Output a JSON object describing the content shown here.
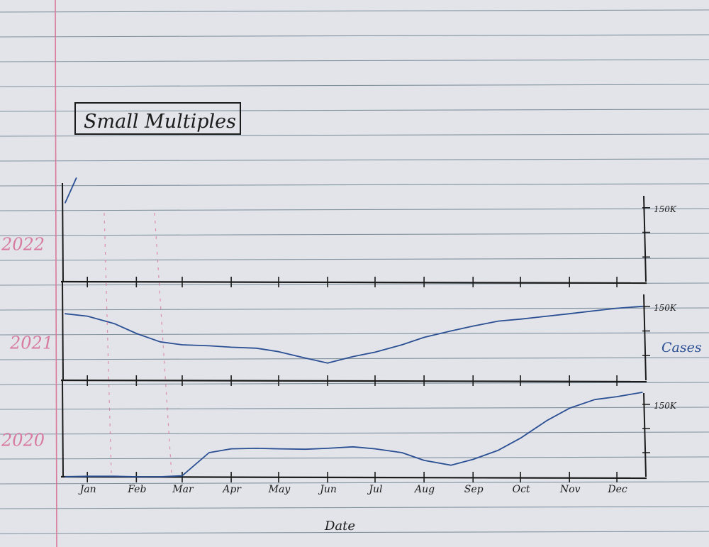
{
  "title": "Small Multiples",
  "xlabel": "Date",
  "ylabel": "Cases",
  "colors": {
    "paper": "#e3e4ea",
    "rule": "#6f8391",
    "margin": "#d97a9a",
    "ink": "#1b1b1b",
    "series": "#2a4f93",
    "year_label": "#d77ba0"
  },
  "chart_data": {
    "type": "line",
    "title": "Small Multiples",
    "xlabel": "Date",
    "ylabel": "Cases",
    "categories": [
      "Jan",
      "Feb",
      "Mar",
      "Apr",
      "May",
      "Jun",
      "Jul",
      "Aug",
      "Sep",
      "Oct",
      "Nov",
      "Dec"
    ],
    "ylim": [
      0,
      200000
    ],
    "tick_label": "150K",
    "panels": [
      {
        "name": "2022",
        "x": [
          "Jan 1",
          "Jan 8"
        ],
        "values": [
          160000,
          210000
        ]
      },
      {
        "name": "2021",
        "x": [
          "Jan 1",
          "Jan 15",
          "Feb 1",
          "Feb 15",
          "Mar 1",
          "Mar 15",
          "Apr 1",
          "Apr 15",
          "May 1",
          "May 15",
          "Jun 1",
          "Jun 15",
          "Jul 1",
          "Jul 15",
          "Aug 1",
          "Aug 15",
          "Sep 1",
          "Sep 15",
          "Oct 1",
          "Oct 15",
          "Nov 1",
          "Nov 15",
          "Dec 1",
          "Dec 15",
          "Dec 31"
        ],
        "values": [
          135000,
          130000,
          115000,
          95000,
          78000,
          72000,
          70000,
          67000,
          65000,
          58000,
          45000,
          35000,
          48000,
          57000,
          72000,
          87000,
          100000,
          110000,
          120000,
          124000,
          130000,
          135000,
          141000,
          146000,
          150000
        ]
      },
      {
        "name": "2020",
        "x": [
          "Jan 1",
          "Jan 15",
          "Feb 1",
          "Feb 15",
          "Mar 1",
          "Mar 15",
          "Apr 1",
          "Apr 15",
          "May 1",
          "May 15",
          "Jun 1",
          "Jun 15",
          "Jul 1",
          "Jul 15",
          "Aug 1",
          "Aug 15",
          "Sep 1",
          "Sep 15",
          "Oct 1",
          "Oct 15",
          "Nov 1",
          "Nov 15",
          "Dec 1",
          "Dec 15",
          "Dec 31"
        ],
        "values": [
          0,
          1000,
          1000,
          0,
          0,
          2000,
          50000,
          58000,
          59000,
          58000,
          57000,
          59000,
          62000,
          58000,
          50000,
          34000,
          24000,
          36000,
          55000,
          80000,
          117000,
          142000,
          160000,
          166000,
          175000
        ]
      }
    ]
  }
}
